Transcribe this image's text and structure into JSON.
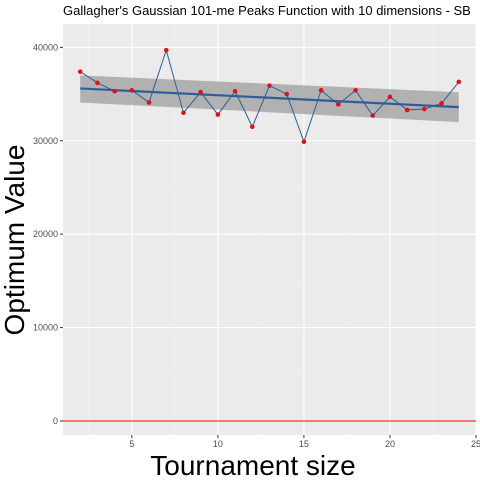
{
  "chart_data": {
    "type": "line",
    "title": "Gallagher's Gaussian 101-me Peaks Function with 10 dimensions -  SB",
    "xlabel": "Tournament size",
    "ylabel": "Optimum Value",
    "xlim": [
      1,
      25
    ],
    "ylim": [
      -1500,
      42500
    ],
    "x_ticks": [
      5,
      10,
      15,
      20,
      25
    ],
    "y_ticks": [
      0,
      10000,
      20000,
      30000,
      40000
    ],
    "x_tick_labels": [
      "5",
      "10",
      "15",
      "20",
      "25"
    ],
    "y_tick_labels": [
      "0",
      "10000",
      "20000",
      "30000",
      "40000"
    ],
    "grid": true,
    "series": [
      {
        "x": [
          2,
          3,
          4,
          5,
          6,
          7,
          8,
          9,
          10,
          11,
          12,
          13,
          14,
          15,
          16,
          17,
          18,
          19,
          20,
          21,
          22,
          23,
          24
        ],
        "y": [
          37400,
          36200,
          35300,
          35400,
          34100,
          39700,
          33000,
          35200,
          32800,
          35300,
          31500,
          35900,
          35000,
          29900,
          35400,
          33900,
          35400,
          32700,
          34700,
          33300,
          33400,
          34000,
          36300
        ],
        "color": "#2c5f96",
        "point_color": "#e0111b"
      }
    ],
    "trend": {
      "x": [
        2,
        24
      ],
      "y": [
        35600,
        33600
      ],
      "ci_lower": [
        34100,
        32000
      ],
      "ci_upper": [
        37000,
        35200
      ],
      "color": "#2c5f96",
      "band_color": "#999999"
    },
    "hline": {
      "y": 0,
      "color": "#ff0000"
    }
  }
}
